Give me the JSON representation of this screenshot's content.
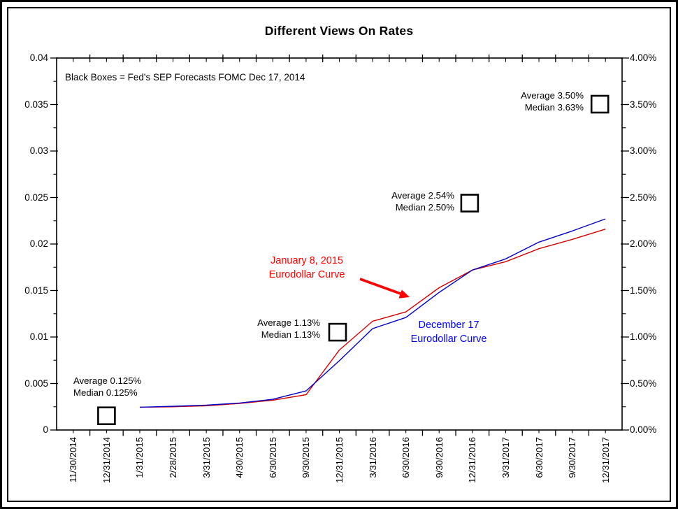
{
  "chart_data": {
    "type": "line",
    "title": "Different Views On Rates",
    "note": "Black Boxes = Fed's SEP Forecasts FOMC Dec 17, 2014",
    "x_labels": [
      "11/30/2014",
      "12/31/2014",
      "1/31/2015",
      "2/28/2015",
      "3/31/2015",
      "4/30/2015",
      "6/30/2015",
      "9/30/2015",
      "12/31/2015",
      "3/31/2016",
      "6/30/2016",
      "9/30/2016",
      "12/31/2016",
      "3/31/2017",
      "6/30/2017",
      "9/30/2017",
      "12/31/2017"
    ],
    "left_axis": {
      "min": 0,
      "max": 0.04,
      "ticks": [
        "0.04",
        "0.035",
        "0.03",
        "0.025",
        "0.02",
        "0.015",
        "0.01",
        "0.005",
        "0"
      ]
    },
    "right_axis": {
      "ticks": [
        "4.00%",
        "3.50%",
        "3.00%",
        "2.50%",
        "2.00%",
        "1.50%",
        "1.00%",
        "0.50%",
        "0.00%"
      ]
    },
    "grid": false,
    "series": [
      {
        "name": "January 8, 2015 Eurodollar Curve",
        "color": "#d40000",
        "label_color": "#ff0000",
        "label_line1": "January 8, 2015",
        "label_line2": "Eurodollar Curve",
        "values": [
          null,
          null,
          0.00245,
          0.0025,
          0.0026,
          0.00285,
          0.0032,
          0.0038,
          0.0086,
          0.0117,
          0.0127,
          0.0153,
          0.0172,
          0.0181,
          0.0195,
          0.0205,
          0.0216
        ]
      },
      {
        "name": "December 17 Eurodollar Curve",
        "color": "#0000c8",
        "label_color": "#0000ff",
        "label_line1": "December 17",
        "label_line2": "Eurodollar Curve",
        "values": [
          null,
          null,
          0.00245,
          0.00255,
          0.00268,
          0.0029,
          0.0033,
          0.0042,
          0.00745,
          0.0109,
          0.0121,
          0.0148,
          0.0172,
          0.0184,
          0.0202,
          0.0214,
          0.0227
        ]
      }
    ],
    "forecast_boxes": [
      {
        "x_label": "12/31/2014",
        "value": 0.00153,
        "average_label": "Average 0.125%",
        "median_label": "Median 0.125%"
      },
      {
        "x_label": "12/31/2015",
        "value": 0.01052,
        "average_label": "Average 1.13%",
        "median_label": "Median 1.13%"
      },
      {
        "x_label": "12/31/2016",
        "value": 0.0244,
        "average_label": "Average 2.54%",
        "median_label": "Median 2.50%"
      },
      {
        "x_label": "12/31/2017",
        "value": 0.03504,
        "average_label": "Average 3.50%",
        "median_label": "Median 3.63%"
      }
    ],
    "arrow_color": "#ff0000"
  }
}
